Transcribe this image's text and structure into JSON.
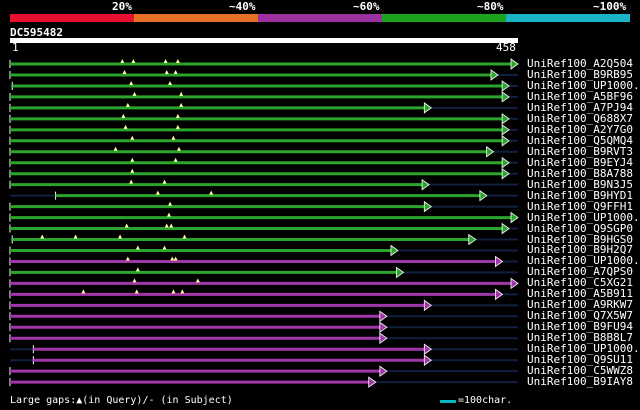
{
  "legend": {
    "segments": [
      {
        "label": "20%",
        "color": "#e8102f"
      },
      {
        "label": "~40%",
        "color": "#e87024"
      },
      {
        "label": "~60%",
        "color": "#9b31a0"
      },
      {
        "label": "~80%",
        "color": "#1ca21c"
      },
      {
        "label": "~100%",
        "color": "#19b5c5"
      }
    ]
  },
  "query": {
    "id": "DC595482",
    "start": "1",
    "end": "458",
    "length": 458
  },
  "hits": [
    {
      "label": "UniRef100_A2Q504",
      "start": 1,
      "end": 458,
      "color": "#2ba52b",
      "dots": [
        102,
        112,
        141,
        152
      ]
    },
    {
      "label": "UniRef100_B9RB95",
      "start": 1,
      "end": 440,
      "color": "#2ba52b",
      "dots": [
        104,
        142,
        150
      ]
    },
    {
      "label": "UniRef100_UP1000..",
      "start": 3,
      "end": 450,
      "color": "#2ba52b",
      "dots": [
        110,
        145
      ]
    },
    {
      "label": "UniRef100_A5BF96",
      "start": 1,
      "end": 450,
      "color": "#2ba52b",
      "dots": [
        113,
        155
      ]
    },
    {
      "label": "UniRef100_A7PJ94",
      "start": 1,
      "end": 380,
      "color": "#2ba52b",
      "dots": [
        107,
        155
      ]
    },
    {
      "label": "UniRef100_Q688X7",
      "start": 1,
      "end": 450,
      "color": "#2ba52b",
      "dots": [
        103,
        152
      ]
    },
    {
      "label": "UniRef100_A2Y7G0",
      "start": 1,
      "end": 450,
      "color": "#2ba52b",
      "dots": [
        105,
        152
      ]
    },
    {
      "label": "UniRef100_Q5QMQ4",
      "start": 1,
      "end": 450,
      "color": "#2ba52b",
      "dots": [
        111,
        148
      ]
    },
    {
      "label": "UniRef100_B9RVT3",
      "start": 1,
      "end": 436,
      "color": "#2ba52b",
      "dots": [
        96,
        153
      ]
    },
    {
      "label": "UniRef100_B9EYJ4",
      "start": 1,
      "end": 450,
      "color": "#2ba52b",
      "dots": [
        111,
        150
      ]
    },
    {
      "label": "UniRef100_B8A788",
      "start": 1,
      "end": 450,
      "color": "#2ba52b",
      "dots": [
        111
      ]
    },
    {
      "label": "UniRef100_B9N3J5",
      "start": 1,
      "end": 378,
      "color": "#2ba52b",
      "dots": [
        110,
        140
      ]
    },
    {
      "label": "UniRef100_B9HYD1",
      "start": 42,
      "end": 430,
      "color": "#2ba52b",
      "dots": [
        134,
        182
      ]
    },
    {
      "label": "UniRef100_Q9FFH1",
      "start": 1,
      "end": 380,
      "color": "#2ba52b",
      "dots": [
        145
      ]
    },
    {
      "label": "UniRef100_UP1000..",
      "start": 1,
      "end": 458,
      "color": "#2ba52b",
      "dots": [
        144
      ]
    },
    {
      "label": "UniRef100_Q9SGP0",
      "start": 1,
      "end": 450,
      "color": "#2ba52b",
      "dots": [
        106,
        142,
        146
      ]
    },
    {
      "label": "UniRef100_B9HGS0",
      "start": 3,
      "end": 420,
      "color": "#2ba52b",
      "dots": [
        30,
        60,
        100,
        158
      ]
    },
    {
      "label": "UniRef100_B9H2Q7",
      "start": 1,
      "end": 350,
      "color": "#2ba52b",
      "dots": [
        116,
        140
      ]
    },
    {
      "label": "UniRef100_UP1000..",
      "start": 1,
      "end": 444,
      "color": "#a037a8",
      "dots": [
        107,
        147,
        150
      ]
    },
    {
      "label": "UniRef100_A7QPS0",
      "start": 1,
      "end": 355,
      "color": "#2ba52b",
      "dots": [
        116
      ]
    },
    {
      "label": "UniRef100_C5XG21",
      "start": 1,
      "end": 458,
      "color": "#a037a8",
      "dots": [
        113,
        170
      ]
    },
    {
      "label": "UniRef100_A5B911",
      "start": 1,
      "end": 444,
      "color": "#a037a8",
      "dots": [
        67,
        115,
        148,
        156
      ]
    },
    {
      "label": "UniRef100_A9RKW7",
      "start": 1,
      "end": 380,
      "color": "#a037a8",
      "dots": []
    },
    {
      "label": "UniRef100_Q7X5W7",
      "start": 1,
      "end": 340,
      "color": "#a037a8",
      "dots": []
    },
    {
      "label": "UniRef100_B9FU94",
      "start": 1,
      "end": 340,
      "color": "#a037a8",
      "dots": []
    },
    {
      "label": "UniRef100_B8B8L7",
      "start": 1,
      "end": 340,
      "color": "#a037a8",
      "dots": []
    },
    {
      "label": "UniRef100_UP1000..",
      "start": 22,
      "end": 380,
      "color": "#a037a8",
      "dots": []
    },
    {
      "label": "UniRef100_Q9SU11",
      "start": 22,
      "end": 380,
      "color": "#a037a8",
      "dots": []
    },
    {
      "label": "UniRef100_C5WWZ8",
      "start": 1,
      "end": 340,
      "color": "#a037a8",
      "dots": []
    },
    {
      "label": "UniRef100_B9IAY8",
      "start": 1,
      "end": 330,
      "color": "#a037a8",
      "dots": []
    }
  ],
  "footer": {
    "gaps_label": "Large gaps:▲(in Query)/‐ (in Subject)",
    "scale_label": "=100char."
  }
}
